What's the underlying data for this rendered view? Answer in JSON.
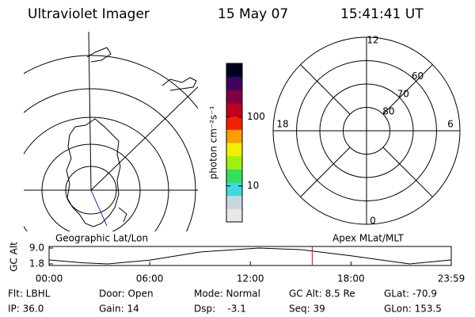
{
  "header": {
    "title": "Ultraviolet Imager",
    "date": "15 May 07",
    "time": "15:41:41 UT"
  },
  "chart_data": [
    {
      "type": "colorbar",
      "label": "photon cm⁻²s⁻¹",
      "log": true,
      "ylim": [
        3,
        600
      ],
      "yticks": [
        10,
        100
      ],
      "colors": [
        "#e8e8e8",
        "#c8d8dc",
        "#40d8e0",
        "#30e060",
        "#a0f010",
        "#f0f000",
        "#f8a000",
        "#f02000",
        "#c00020",
        "#800040",
        "#400060",
        "#000020"
      ]
    },
    {
      "type": "polar",
      "rlim": [
        90,
        50
      ],
      "rticks": [
        60,
        70,
        80
      ],
      "thetaticks": [
        12,
        18,
        6,
        0
      ]
    },
    {
      "type": "line",
      "title_left": "Geographic Lat/Lon",
      "title_right": "Apex MLat/MLT",
      "ylabel": "GC Alt",
      "x": [
        0,
        2,
        3.5,
        6,
        9,
        12.5,
        15,
        18,
        21.5,
        23.98
      ],
      "values": [
        3.6,
        2.3,
        1.8,
        3.5,
        7.2,
        9.0,
        8.3,
        5.5,
        1.8,
        3.6
      ],
      "xlim": [
        0,
        23.98
      ],
      "ylim": [
        1.8,
        9.0
      ],
      "xticks": [
        {
          "value": 0,
          "label": "00:00"
        },
        {
          "value": 6,
          "label": "06:00"
        },
        {
          "value": 12,
          "label": "12:00"
        },
        {
          "value": 18,
          "label": "18:00"
        },
        {
          "value": 23.98,
          "label": "23:59"
        }
      ],
      "yticks": [
        {
          "value": 9.0,
          "label": "9.0"
        },
        {
          "value": 1.8,
          "label": "1.8"
        }
      ],
      "marker_x": 15.69,
      "marker_color": "#e00000",
      "color": "#000000"
    }
  ],
  "footer": {
    "rows": [
      [
        "Flt: LBHL",
        "Door: Open",
        "Mode: Normal",
        "GC Alt: 8.5 Re",
        "GLat: -70.9"
      ],
      [
        "IP: 36.0",
        "Gain: 14",
        "Dsp:    -3.1",
        "Seq: 39",
        "GLon: 153.5"
      ]
    ]
  }
}
